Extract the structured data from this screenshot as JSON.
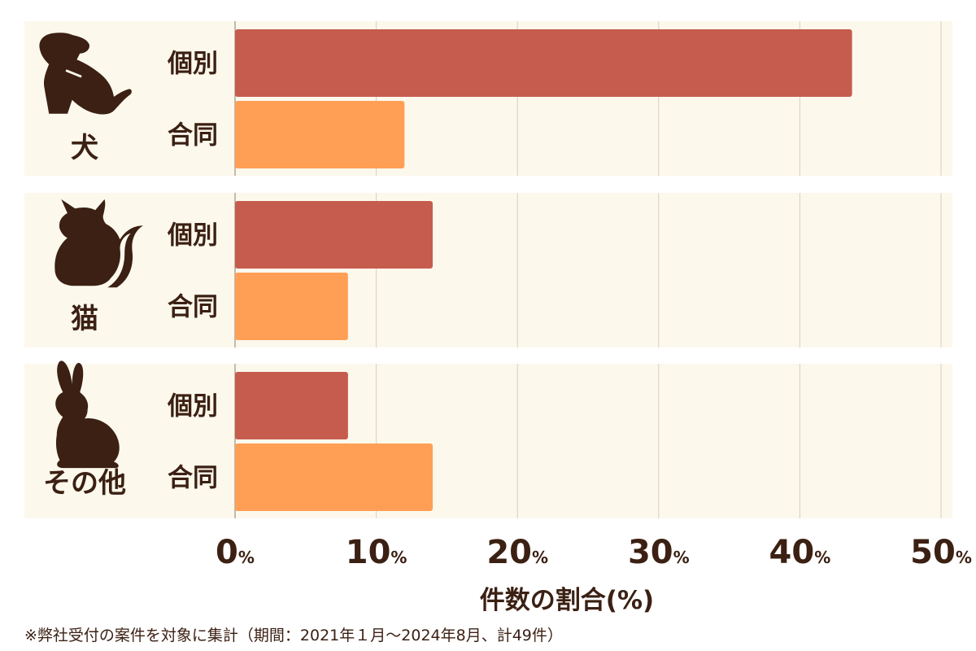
{
  "chart_data": {
    "type": "bar",
    "orientation": "horizontal",
    "groups": [
      {
        "label": "犬",
        "icon": "dog-icon",
        "bars": [
          {
            "label": "個別",
            "value": 43.7
          },
          {
            "label": "合同",
            "value": 12.0
          }
        ]
      },
      {
        "label": "猫",
        "icon": "cat-icon",
        "bars": [
          {
            "label": "個別",
            "value": 14.0
          },
          {
            "label": "合同",
            "value": 8.0
          }
        ]
      },
      {
        "label": "その他",
        "icon": "rabbit-icon",
        "bars": [
          {
            "label": "個別",
            "value": 8.0
          },
          {
            "label": "合同",
            "value": 14.0
          }
        ]
      }
    ],
    "ticks": [
      0,
      10,
      20,
      30,
      40,
      50
    ],
    "tick_unit": "%",
    "xlim": [
      0,
      50
    ],
    "xlabel": "件数の割合(%)",
    "grid": true,
    "colors": {
      "個別": "#c65c4e",
      "合同": "#ff9f55",
      "panel": "#fcf8ec",
      "grid": "#d6d0c0",
      "text": "#3b2013"
    }
  },
  "footnote": "※弊社受付の案件を対象に集計（期間：2021年１月～2024年8月、計49件）"
}
